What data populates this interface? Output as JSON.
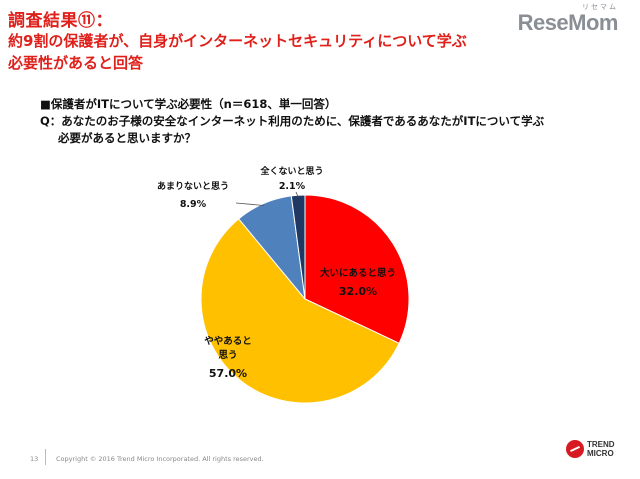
{
  "slide": {
    "title_line1": "調査結果⑪：",
    "title_line2": "約9割の保護者が、自身がインターネットセキュリティについて学ぶ",
    "title_line3": "必要性があると回答",
    "header": "■保護者がITについて学ぶ必要性（n＝618、単一回答）",
    "question_line1": "Q：あなたのお子様の安全なインターネット利用のために、保護者であるあなたがITについて学ぶ",
    "question_line2": "必要があると思いますか？"
  },
  "logo": {
    "text": "ReseMom",
    "kana": "リセマム"
  },
  "footer": {
    "page_number": "13",
    "copyright": "Copyright © 2016 Trend Micro Incorporated. All rights reserved.",
    "brand_line1": "TREND",
    "brand_line2": "MICRO"
  },
  "chart_data": {
    "type": "pie",
    "slices": [
      {
        "label": "大いにあると思う",
        "value": 32.0,
        "display": "32.0%",
        "color": "#ff0000"
      },
      {
        "label": "ややあると思う",
        "value": 57.0,
        "display": "57.0%",
        "color": "#ffc000"
      },
      {
        "label": "あまりないと思う",
        "value": 8.9,
        "display": "8.9%",
        "color": "#4f81bd"
      },
      {
        "label": "全くないと思う",
        "value": 2.1,
        "display": "2.1%",
        "color": "#1f3864"
      }
    ],
    "start": "12 o'clock",
    "direction": "clockwise"
  }
}
